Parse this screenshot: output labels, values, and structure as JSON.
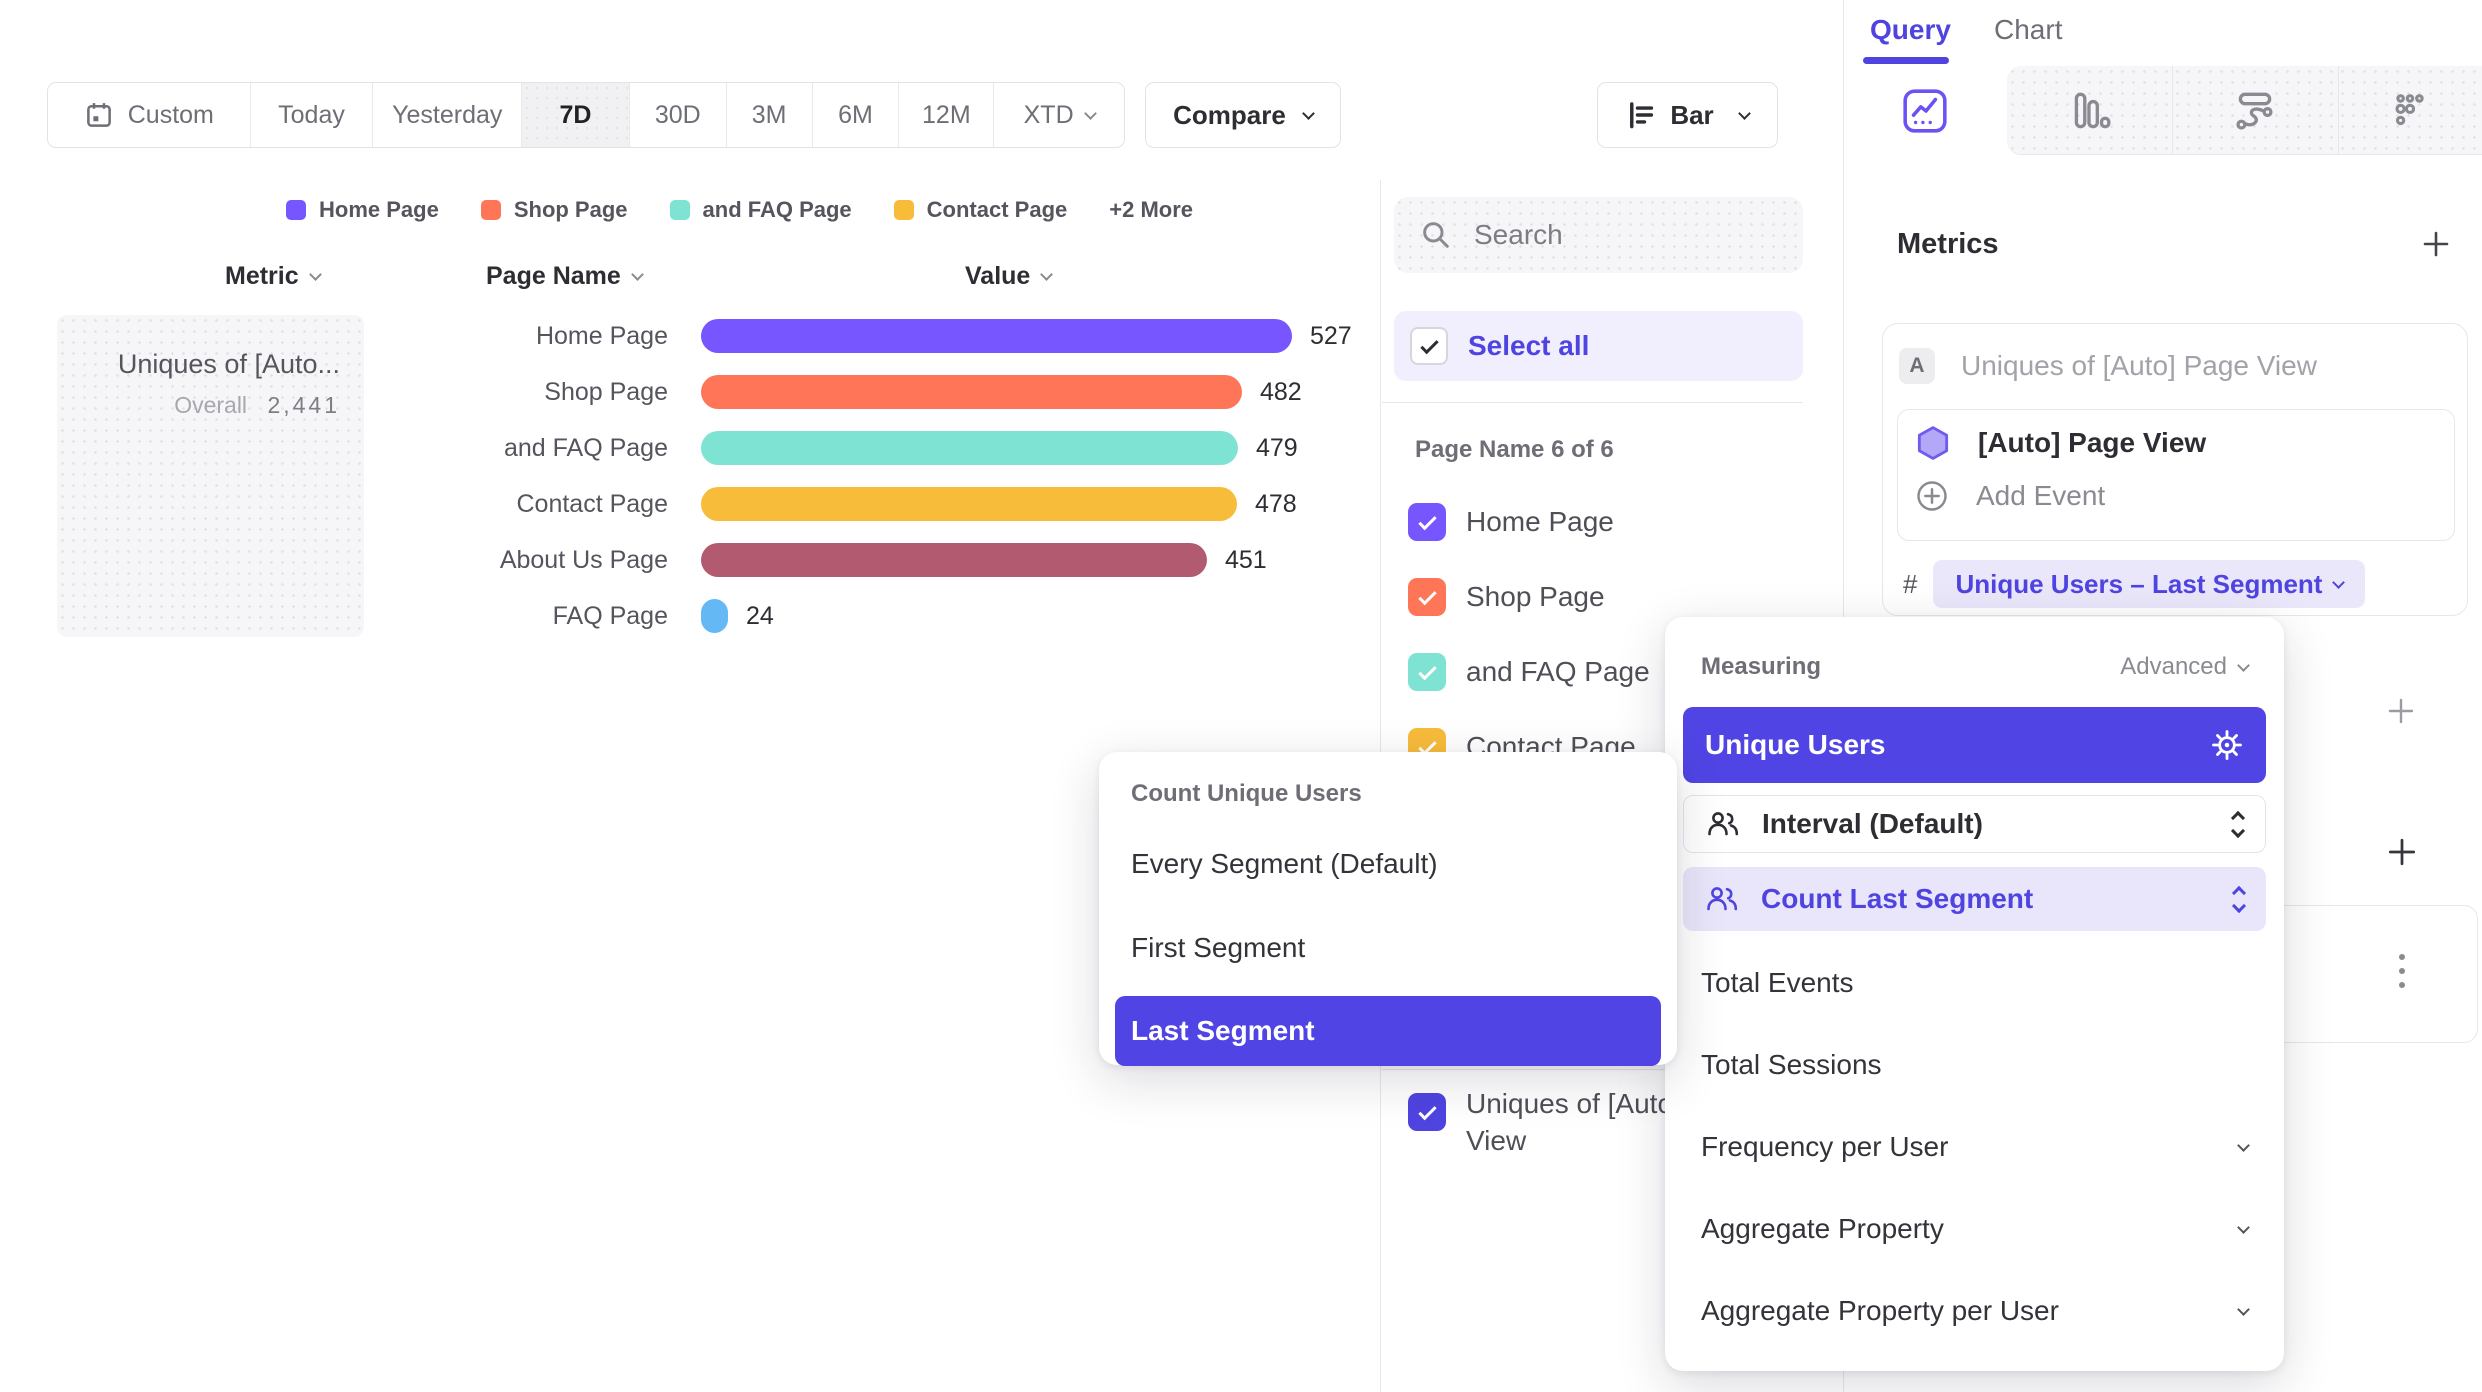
{
  "toolbar": {
    "ranges": [
      "Custom",
      "Today",
      "Yesterday",
      "7D",
      "30D",
      "3M",
      "6M",
      "12M",
      "XTD"
    ],
    "selected_range": "7D",
    "compare_label": "Compare",
    "chart_type_label": "Bar"
  },
  "legend": {
    "items": [
      {
        "label": "Home Page",
        "color": "#7856FF"
      },
      {
        "label": "Shop Page",
        "color": "#FF7557"
      },
      {
        "label": "and FAQ Page",
        "color": "#7EE3D3"
      },
      {
        "label": "Contact Page",
        "color": "#F8BC3B"
      }
    ],
    "more_label": "+2 More"
  },
  "table": {
    "headers": {
      "metric": "Metric",
      "page_name": "Page Name",
      "value": "Value"
    },
    "metric_cell": {
      "title": "Uniques of [Auto...",
      "overall_label": "Overall",
      "overall_value": "2,441"
    }
  },
  "chart_data": {
    "type": "bar",
    "orientation": "horizontal",
    "categories": [
      "Home Page",
      "Shop Page",
      "and FAQ Page",
      "Contact Page",
      "About Us Page",
      "FAQ Page"
    ],
    "values": [
      527,
      482,
      479,
      478,
      451,
      24
    ],
    "colors": [
      "#7856FF",
      "#FF7557",
      "#7EE3D3",
      "#F8BC3B",
      "#B25B70",
      "#64B9F4"
    ],
    "title": "",
    "xlabel": "Value",
    "ylabel": "Page Name",
    "xlim": [
      0,
      527
    ],
    "grid": false,
    "legend_position": "top"
  },
  "filter_panel": {
    "search_placeholder": "Search",
    "select_all_label": "Select all",
    "group_label": "Page Name 6 of 6",
    "items": [
      {
        "label": "Home Page",
        "color": "#7856FF",
        "checked": true
      },
      {
        "label": "Shop Page",
        "color": "#FF7557",
        "checked": true
      },
      {
        "label": "and FAQ Page",
        "color": "#7EE3D3",
        "checked": true
      },
      {
        "label": "Contact Page",
        "color": "#F8BC3B",
        "checked": true
      }
    ],
    "metric_item": {
      "label": "Uniques of [Auto] Page View",
      "color": "#4F44E0",
      "checked": true
    }
  },
  "segment_menu": {
    "title": "Count Unique Users",
    "items": [
      "Every Segment (Default)",
      "First Segment",
      "Last Segment"
    ],
    "selected": "Last Segment"
  },
  "query_panel": {
    "tabs": [
      "Query",
      "Chart"
    ],
    "active_tab": "Query",
    "chart_type_tabs": [
      "insights",
      "funnels",
      "flows",
      "retention"
    ],
    "metrics": {
      "heading": "Metrics",
      "series_badge": "A",
      "series_title": "Uniques of [Auto] Page View",
      "event_name": "[Auto] Page View",
      "add_event_label": "Add Event",
      "hash_symbol": "#",
      "measurement_pill": "Unique Users – Last Segment"
    }
  },
  "measuring_menu": {
    "title": "Measuring",
    "advanced_label": "Advanced",
    "selected": "Unique Users",
    "interval_label": "Interval (Default)",
    "count_label": "Count Last Segment",
    "items": [
      "Total Events",
      "Total Sessions",
      "Frequency per User",
      "Aggregate Property",
      "Aggregate Property per User"
    ]
  },
  "colors": {
    "accent_purple": "#5044E4",
    "accent_light": "#EAE7FB",
    "select_all_bg": "#F1EFFD",
    "text_dark": "#2D2D33",
    "text_grey": "#6E6E76",
    "border": "#E7E7EB"
  }
}
